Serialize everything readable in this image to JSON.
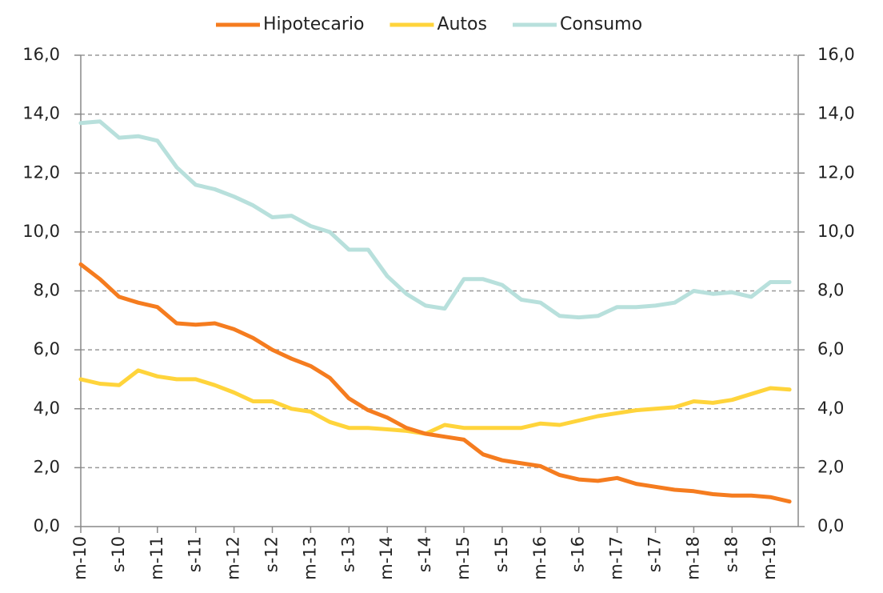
{
  "chart_data": {
    "type": "line",
    "categories": [
      "m-10",
      null,
      "s-10",
      null,
      "m-11",
      null,
      "s-11",
      null,
      "m-12",
      null,
      "s-12",
      null,
      "m-13",
      null,
      "s-13",
      null,
      "m-14",
      null,
      "s-14",
      null,
      "m-15",
      null,
      "s-15",
      null,
      "m-16",
      null,
      "s-16",
      null,
      "m-17",
      null,
      "s-17",
      null,
      "m-18",
      null,
      "s-18",
      null,
      "m-19",
      null
    ],
    "series": [
      {
        "name": "Hipotecario",
        "color": "#f57c1f",
        "values": [
          8.9,
          8.4,
          7.8,
          7.6,
          7.45,
          6.9,
          6.85,
          6.9,
          6.7,
          6.4,
          6.0,
          5.7,
          5.45,
          5.05,
          4.35,
          3.95,
          3.7,
          3.35,
          3.15,
          3.05,
          2.95,
          2.45,
          2.25,
          2.15,
          2.05,
          1.75,
          1.6,
          1.55,
          1.65,
          1.45,
          1.35,
          1.25,
          1.2,
          1.1,
          1.05,
          1.05,
          1.0,
          0.85
        ]
      },
      {
        "name": "Autos",
        "color": "#ffd43b",
        "values": [
          5.0,
          4.85,
          4.8,
          5.3,
          5.1,
          5.0,
          5.0,
          4.8,
          4.55,
          4.25,
          4.25,
          4.0,
          3.9,
          3.55,
          3.35,
          3.35,
          3.3,
          3.25,
          3.15,
          3.45,
          3.35,
          3.35,
          3.35,
          3.35,
          3.5,
          3.45,
          3.6,
          3.75,
          3.85,
          3.95,
          4.0,
          4.05,
          4.25,
          4.2,
          4.3,
          4.5,
          4.7,
          4.65
        ]
      },
      {
        "name": "Consumo",
        "color": "#b8e0dc",
        "values": [
          13.7,
          13.75,
          13.2,
          13.25,
          13.1,
          12.2,
          11.6,
          11.45,
          11.2,
          10.9,
          10.5,
          10.55,
          10.2,
          10.0,
          9.4,
          9.4,
          8.5,
          7.9,
          7.5,
          7.4,
          8.4,
          8.4,
          8.2,
          7.7,
          7.6,
          7.15,
          7.1,
          7.15,
          7.45,
          7.45,
          7.5,
          7.6,
          8.0,
          7.9,
          7.95,
          7.8,
          8.3,
          8.3
        ]
      }
    ],
    "ylim": [
      0,
      16
    ],
    "yticks": [
      {
        "value": 0,
        "label": "0,0"
      },
      {
        "value": 2,
        "label": "2,0"
      },
      {
        "value": 4,
        "label": "4,0"
      },
      {
        "value": 6,
        "label": "6,0"
      },
      {
        "value": 8,
        "label": "8,0"
      },
      {
        "value": 10,
        "label": "10,0"
      },
      {
        "value": 12,
        "label": "12,0"
      },
      {
        "value": 14,
        "label": "14,0"
      },
      {
        "value": 16,
        "label": "16,0"
      }
    ],
    "y2lim": [
      0,
      16
    ],
    "y2ticks": [
      {
        "value": 0,
        "label": "0,0"
      },
      {
        "value": 2,
        "label": "2,0"
      },
      {
        "value": 4,
        "label": "4,0"
      },
      {
        "value": 6,
        "label": "6,0"
      },
      {
        "value": 8,
        "label": "8,0"
      },
      {
        "value": 10,
        "label": "10,0"
      },
      {
        "value": 12,
        "label": "12,0"
      },
      {
        "value": 14,
        "label": "14,0"
      },
      {
        "value": 16,
        "label": "16,0"
      }
    ],
    "grid": true,
    "legend": "top"
  }
}
